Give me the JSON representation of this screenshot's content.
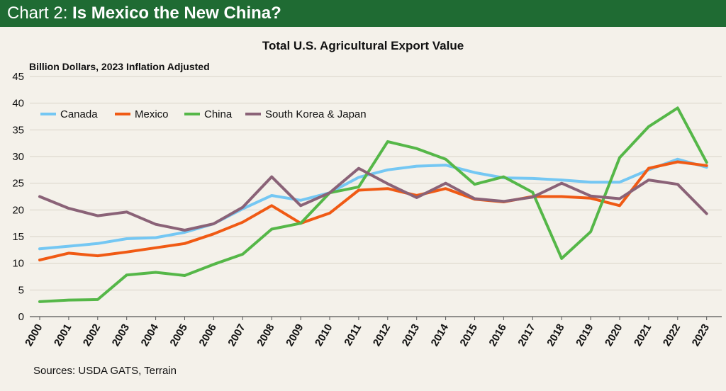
{
  "header": {
    "prefix": "Chart 2: ",
    "title": "Is Mexico the New China?"
  },
  "source": "Sources: USDA GATS, Terrain",
  "colors": {
    "header_bg": "#1f6b33",
    "canada": "#74c7f3",
    "mexico": "#f05a14",
    "china": "#55b748",
    "south_korea_japan": "#8a6277",
    "grid": "#d9d4c8",
    "background": "#f4f1ea"
  },
  "chart_data": {
    "type": "line",
    "title": "Total U.S. Agricultural Export Value",
    "ylabel": "Billion Dollars, 2023 Inflation Adjusted",
    "xlabel": "",
    "ylim": [
      0,
      45
    ],
    "yticks": [
      0,
      5,
      10,
      15,
      20,
      25,
      30,
      35,
      40,
      45
    ],
    "grid": true,
    "legend_position": "top-left",
    "categories": [
      "2000",
      "2001",
      "2002",
      "2003",
      "2004",
      "2005",
      "2006",
      "2007",
      "2008",
      "2009",
      "2010",
      "2011",
      "2012",
      "2013",
      "2014",
      "2015",
      "2016",
      "2017",
      "2018",
      "2019",
      "2020",
      "2021",
      "2022",
      "2023"
    ],
    "series": [
      {
        "name": "Canada",
        "color": "#74c7f3",
        "values": [
          12.7,
          13.2,
          13.7,
          14.6,
          14.8,
          15.8,
          17.4,
          20.2,
          22.7,
          21.8,
          23.2,
          26.1,
          27.5,
          28.2,
          28.4,
          27.0,
          26.0,
          25.9,
          25.6,
          25.2,
          25.2,
          27.5,
          29.5,
          28.0
        ]
      },
      {
        "name": "Mexico",
        "color": "#f05a14",
        "values": [
          10.6,
          11.9,
          11.4,
          12.1,
          12.9,
          13.7,
          15.5,
          17.7,
          20.8,
          17.5,
          19.4,
          23.7,
          24.0,
          22.7,
          24.0,
          22.0,
          21.5,
          22.5,
          22.5,
          22.2,
          20.8,
          27.8,
          29.0,
          28.3
        ]
      },
      {
        "name": "China",
        "color": "#55b748",
        "values": [
          2.8,
          3.1,
          3.2,
          7.8,
          8.3,
          7.7,
          9.8,
          11.7,
          16.4,
          17.5,
          23.2,
          24.3,
          32.8,
          31.5,
          29.5,
          24.8,
          26.2,
          23.3,
          10.9,
          15.9,
          29.8,
          35.6,
          39.1,
          28.9
        ]
      },
      {
        "name": "South Korea & Japan",
        "color": "#8a6277",
        "values": [
          22.5,
          20.3,
          18.9,
          19.6,
          17.3,
          16.2,
          17.4,
          20.5,
          26.2,
          20.8,
          23.2,
          27.8,
          24.9,
          22.3,
          25.0,
          22.1,
          21.6,
          22.4,
          25.0,
          22.6,
          22.1,
          25.6,
          24.8,
          19.3
        ]
      }
    ]
  }
}
